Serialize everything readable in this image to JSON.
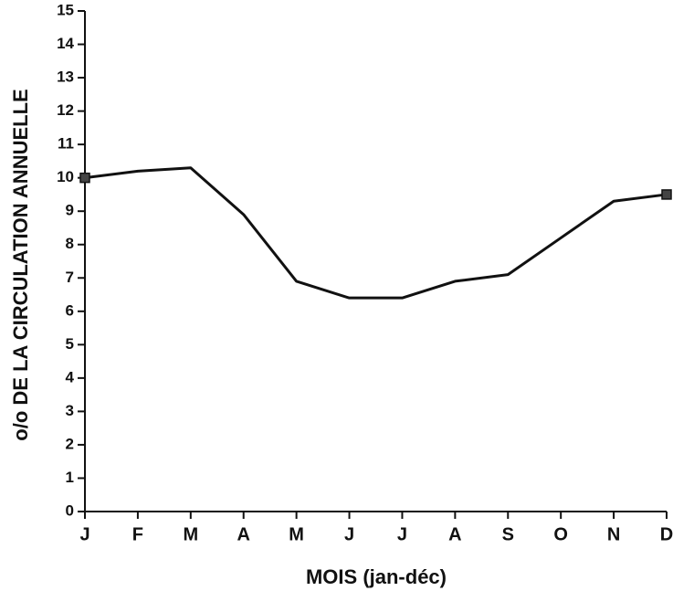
{
  "chart_data": {
    "type": "line",
    "x_label": "MOIS (jan-déc)",
    "y_label": "o/o DE LA CIRCULATION ANNUELLE",
    "categories": [
      "J",
      "F",
      "M",
      "A",
      "M",
      "J",
      "J",
      "A",
      "S",
      "O",
      "N",
      "D"
    ],
    "values": [
      10,
      10.2,
      10.3,
      8.9,
      6.9,
      6.4,
      6.4,
      6.9,
      7.1,
      8.2,
      9.3,
      9.5
    ],
    "color": "#111111",
    "ylim": [
      0,
      15
    ],
    "yticks": [
      0,
      1,
      2,
      3,
      4,
      5,
      6,
      7,
      8,
      9,
      10,
      11,
      12,
      13,
      14,
      15
    ]
  }
}
